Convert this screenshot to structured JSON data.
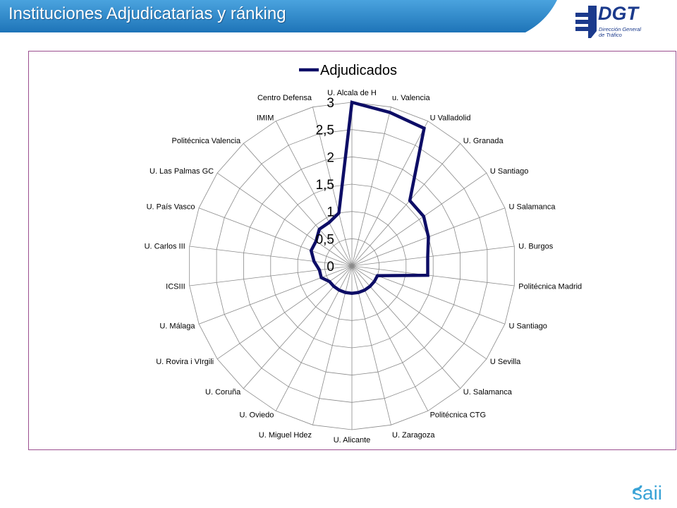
{
  "header": {
    "title": "Instituciones Adjudicatarias y ránking",
    "band_color": "#2b84c6"
  },
  "logo_dgt": {
    "text": "DGT",
    "subtitle_lines": [
      "Dirección General",
      "de Tráfico"
    ],
    "icon": "dgt-logo-icon",
    "color": "#1b3a8c"
  },
  "logo_saii": {
    "text": "saii",
    "icon": "saii-logo-icon",
    "color": "#3aa3d6"
  },
  "chart_data": {
    "type": "radar",
    "legend": {
      "label": "Adjudicados",
      "placement": "top"
    },
    "series": [
      {
        "name": "Adjudicados",
        "color": "#0d0d66",
        "values": [
          3,
          2.9,
          2.85,
          1.6,
          1.6,
          1.5,
          1.4,
          1.4,
          0.5,
          0.5,
          0.5,
          0.5,
          0.5,
          0.5,
          0.5,
          0.5,
          0.5,
          0.5,
          0.6,
          0.6,
          0.7,
          0.8,
          0.8,
          0.9,
          0.9,
          1.0
        ]
      }
    ],
    "categories": [
      "U. Alcala de H",
      "u. Valencia",
      "U Valladolid",
      "U. Granada",
      "U Santiago",
      "U Salamanca",
      "U. Burgos",
      "Politécnica Madrid",
      "U Santiago",
      "U Sevilla",
      "U. Salamanca",
      "Politécnica CTG",
      "U. Zaragoza",
      "U. Alicante",
      "U. Miguel Hdez",
      "U. Oviedo",
      "U. Coruña",
      "U. Rovira i VIrgili",
      "U. Málaga",
      "ICSIII",
      "U. Carlos III",
      "U. País Vasco",
      "U. Las Palmas GC",
      "Politécnica Valencia",
      "IMIM",
      "Centro Defensa"
    ],
    "radial_ticks": [
      "0",
      "0,5",
      "1",
      "1,5",
      "2",
      "2,5",
      "3"
    ],
    "rmax": 3,
    "grid": true
  }
}
